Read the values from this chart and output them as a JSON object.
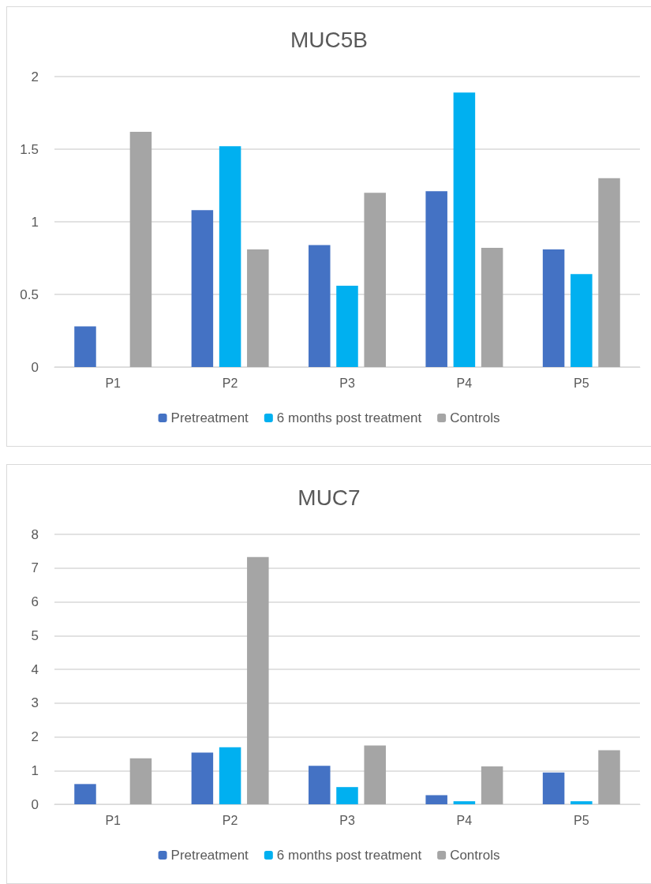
{
  "chart_data": [
    {
      "type": "bar",
      "title": "MUC5B",
      "categories": [
        "P1",
        "P2",
        "P3",
        "P4",
        "P5"
      ],
      "series": [
        {
          "name": "Pretreatment",
          "color": "#4472c4",
          "values": [
            0.28,
            1.08,
            0.84,
            1.21,
            0.81
          ]
        },
        {
          "name": "6 months post treatment",
          "color": "#00b0f0",
          "values": [
            null,
            1.52,
            0.56,
            1.89,
            0.64
          ]
        },
        {
          "name": "Controls",
          "color": "#a5a5a5",
          "values": [
            1.62,
            0.81,
            1.2,
            0.82,
            1.3
          ]
        }
      ],
      "ylim": [
        0,
        2
      ],
      "yticks": [
        0,
        0.5,
        1,
        1.5,
        2
      ],
      "grid": "y",
      "legend": "bottom"
    },
    {
      "type": "bar",
      "title": "MUC7",
      "categories": [
        "P1",
        "P2",
        "P3",
        "P4",
        "P5"
      ],
      "series": [
        {
          "name": "Pretreatment",
          "color": "#4472c4",
          "values": [
            0.6,
            1.53,
            1.14,
            0.27,
            0.94
          ]
        },
        {
          "name": "6 months post treatment",
          "color": "#00b0f0",
          "values": [
            null,
            1.69,
            0.51,
            0.09,
            0.09
          ]
        },
        {
          "name": "Controls",
          "color": "#a5a5a5",
          "values": [
            1.36,
            7.33,
            1.74,
            1.12,
            1.6
          ]
        }
      ],
      "ylim": [
        0,
        8
      ],
      "yticks": [
        0,
        1,
        2,
        3,
        4,
        5,
        6,
        7,
        8
      ],
      "grid": "y",
      "legend": "bottom"
    }
  ]
}
